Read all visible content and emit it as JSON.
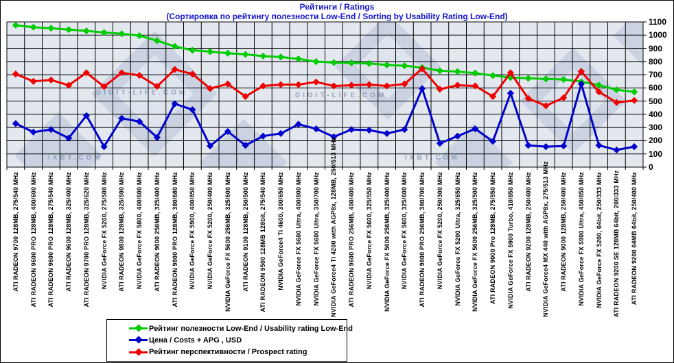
{
  "title": {
    "line1": "Рейтинги / Ratings",
    "line2": "(Сортировка по рейтингу полезности Low-End / Sorting by Usability Rating Low-End)"
  },
  "colors": {
    "title_text": "#1414cd",
    "plot_background": "#e3e8ef",
    "grid": "#000000",
    "usability_green": "#00cc00",
    "price_blue": "#0000cc",
    "prospect_red": "#ee0000"
  },
  "watermark_texts": {
    "digit_life_1": "DIGIT-LIFE.COM",
    "digit_life_2": "DIGIT-LIFE.COM",
    "ixbt_1": "iXBT.COM",
    "ixbt_2": "iXBT.COM"
  },
  "chart_data": {
    "type": "line",
    "title": "Рейтинги / Ratings",
    "subtitle": "(Сортировка по рейтингу полезности Low-End / Sorting by Usability Rating Low-End)",
    "grid": true,
    "legend_position": "bottom-left",
    "ylim": [
      0,
      1100
    ],
    "ytick_step": 100,
    "yticks": [
      "1100",
      "1000",
      "900",
      "800",
      "700",
      "600",
      "500",
      "400",
      "300",
      "200",
      "100",
      "0"
    ],
    "categories": [
      "ATI RADEON 9700 128MB, 275/540 MHz",
      "ATI RADEON 9600 PRO 128MB, 400/600 MHz",
      "ATI RADEON 9600 PRO 128MB, 275/540 MHz",
      "ATI RADEON 9600 128MB, 325/400 MHz",
      "ATI RADEON 9700 PRO 128MB, 325/620 MHz",
      "NVIDIA GeForce FX 5200, 275/500 MHz",
      "ATI RADEON 9800 128MB, 325/590 MHz",
      "NVIDIA GeForce FX 5800, 400/600 MHz",
      "ATI RADEON 9600 256MB, 325/400 MHz",
      "ATI RADEON 9800 PRO 128MB, 380/680 MHz",
      "NVIDIA GeForce FX 5900, 400/850 MHz",
      "NVIDIA GeForce FX 5200, 250/400 MHz",
      "NVIDIA GeForce FX 5600 256MB, 325/600 MHz",
      "ATI RADEON 9100 128MB, 250/500 MHz",
      "ATI RADEON 9500 128MB 128bit, 275/540 MHz",
      "NVIDIA GeForce4 Ti 4600, 300/650 MHz",
      "NVIDIA GeForce FX 5600 Ultra, 400/800 MHz",
      "NVIDIA GeForce FX 5600 Ultra, 350/700 MHz",
      "NVIDIA GeForce4 Ti 4200 with AGP8x, 128MB, 250/513 MHz",
      "ATI RADEON 9600 PRO 256MB, 400/400 MHz",
      "NVIDIA GeForce FX 5600, 325/550 MHz",
      "NVIDIA GeForce FX 5600 256MB, 325/400 MHz",
      "NVIDIA GeForce FX 5600, 325/600 MHz",
      "ATI RADEON 9800 PRO 256MB, 380/700 MHz",
      "NVIDIA GeForce FX 5200, 250/300 MHz",
      "NVIDIA GeForce FX 5200 Ultra, 325/650 MHz",
      "NVIDIA GeForce FX 5600 256MB, 325/500 MHz",
      "ATI RADEON 9000 Pro 128MB, 275/550 MHz",
      "NVIDIA GeForce FX 5900 Turbo, 410/850 MHz",
      "ATI RADEON 9200 128MB, 250/400 MHz",
      "NVIDIA GeForce4 MX 440 with AGP8x, 275/513 MHz",
      "ATI RADEON 9000 128MB, 250/400 MHz",
      "NVIDIA GeForce FX 5900 Ultra, 450/850 MHz",
      "NVIDIA GeForce FX 5200, 64bit, 250/333 MHz",
      "ATI RADEON 9200 SE 128MB 64bit, 200/333 MHz",
      "ATI RADEON 9200 64MB 64bit, 250/400 MHz"
    ],
    "series": [
      {
        "name": "Рейтинг полезности Low-End / Usability rating Low-End",
        "color": "#00cc00",
        "values": [
          1075,
          1060,
          1052,
          1042,
          1032,
          1020,
          1010,
          996,
          958,
          915,
          885,
          875,
          863,
          854,
          841,
          834,
          820,
          799,
          792,
          790,
          785,
          774,
          768,
          754,
          730,
          724,
          712,
          694,
          678,
          673,
          668,
          664,
          647,
          621,
          586,
          570
        ]
      },
      {
        "name": "Цена / Costs + APG , USD",
        "color": "#0000cc",
        "values": [
          330,
          265,
          285,
          220,
          390,
          155,
          370,
          345,
          225,
          480,
          435,
          160,
          270,
          165,
          235,
          255,
          325,
          290,
          230,
          285,
          280,
          255,
          285,
          595,
          180,
          235,
          290,
          195,
          560,
          165,
          155,
          160,
          630,
          165,
          130,
          155
        ]
      },
      {
        "name": "Рейтинг перспективности / Prospect rating",
        "color": "#ee0000",
        "values": [
          705,
          650,
          660,
          620,
          715,
          610,
          715,
          695,
          612,
          740,
          705,
          595,
          630,
          535,
          615,
          625,
          625,
          645,
          615,
          620,
          625,
          615,
          630,
          745,
          590,
          620,
          615,
          535,
          715,
          520,
          465,
          525,
          725,
          570,
          490,
          505
        ]
      }
    ]
  }
}
